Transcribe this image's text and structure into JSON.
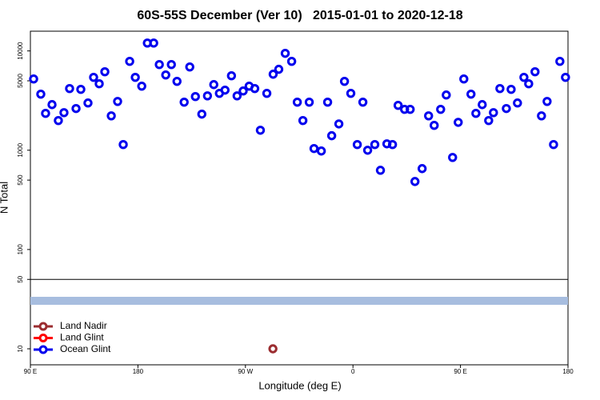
{
  "chart_data": {
    "type": "scatter",
    "title": "60S-55S December (Ver 10)   2015-01-01 to 2020-12-18",
    "xlabel": "Longitude (deg E)",
    "ylabel": "N Total",
    "xlim": [
      90,
      540
    ],
    "xticks": [
      {
        "value": 90,
        "label": "90 E"
      },
      180,
      {
        "value": 270,
        "label": "90 W"
      },
      {
        "value": 360,
        "label": "0"
      },
      {
        "value": 450,
        "label": "90 E"
      },
      {
        "value": 540,
        "label": "180"
      }
    ],
    "ylim": [
      6.9,
      15800
    ],
    "yscale": "log",
    "yticks": [
      10,
      50,
      100,
      500,
      1000,
      5000,
      10000
    ],
    "series": [
      {
        "name": "Land Nadir",
        "color": "#9b2d30",
        "x": [
          293
        ],
        "values": [
          10
        ]
      },
      {
        "name": "Land Glint",
        "color": "#ff0000",
        "x": [],
        "values": []
      },
      {
        "name": "Ocean Glint",
        "color": "#0000ee",
        "x": [
          92.7,
          98.7,
          102.7,
          108.1,
          113.4,
          118.1,
          122.8,
          128.2,
          132.2,
          138.2,
          142.9,
          147.6,
          152.3,
          157.7,
          163.0,
          167.7,
          173.1,
          177.8,
          183.2,
          187.9,
          193.2,
          197.9,
          203.3,
          208.0,
          212.7,
          218.7,
          223.4,
          228.1,
          233.5,
          238.2,
          243.5,
          248.2,
          252.9,
          258.3,
          263.0,
          268.1,
          273.1,
          277.8,
          282.5,
          287.9,
          293.2,
          297.9,
          303.3,
          308.7,
          313.4,
          318.1,
          323.4,
          327.4,
          333.5,
          338.8,
          342.2,
          348.2,
          352.9,
          358.2,
          363.6,
          368.3,
          372.3,
          378.3,
          383.0,
          388.4,
          393.1,
          397.8,
          403.2,
          407.9,
          411.9,
          417.9,
          423.3,
          428.0,
          433.4,
          438.1,
          443.4,
          448.1,
          452.8,
          458.8,
          462.9,
          468.2,
          473.6,
          477.6,
          483.0,
          488.4,
          492.4,
          497.7,
          503.1,
          507.1,
          512.4,
          517.8,
          522.5,
          527.9,
          533.2,
          537.9
        ],
        "values": [
          5220,
          3670,
          2350,
          2880,
          1990,
          2390,
          4180,
          2630,
          4100,
          2990,
          5420,
          4670,
          6170,
          2220,
          3100,
          1140,
          7850,
          5420,
          4420,
          12000,
          12000,
          7290,
          5730,
          7290,
          4940,
          3050,
          6900,
          3470,
          2310,
          3530,
          4580,
          3740,
          4030,
          5620,
          3530,
          3950,
          4420,
          4180,
          1590,
          3740,
          5830,
          6530,
          9460,
          7850,
          3050,
          1990,
          3050,
          1040,
          982,
          3050,
          1400,
          1840,
          4940,
          3740,
          1140,
          3050,
          1000,
          1140,
          628,
          1160,
          1140,
          2830,
          2580,
          2580,
          484,
          653,
          2220,
          1780,
          2580,
          3600,
          846,
          1910,
          5220,
          3670,
          2350,
          2880,
          1990,
          2390,
          4180,
          2630,
          4100,
          2990,
          5420,
          4670,
          6170,
          2220,
          3100,
          1140,
          7850,
          5420
        ]
      }
    ]
  }
}
